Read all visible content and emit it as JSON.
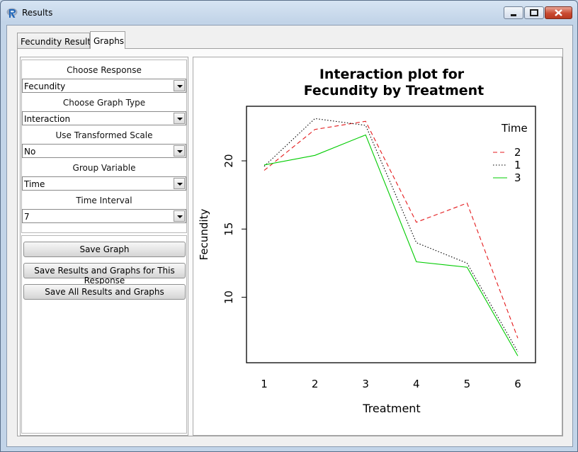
{
  "window": {
    "title": "Results",
    "icon": "r-logo-icon"
  },
  "tabs": [
    {
      "label": "Fecundity Results",
      "active": false
    },
    {
      "label": "Graphs",
      "active": true
    }
  ],
  "options": {
    "response": {
      "label": "Choose Response",
      "value": "Fecundity"
    },
    "graph_type": {
      "label": "Choose Graph Type",
      "value": "Interaction"
    },
    "transformed": {
      "label": "Use Transformed Scale",
      "value": "No"
    },
    "group": {
      "label": "Group Variable",
      "value": "Time"
    },
    "interval": {
      "label": "Time Interval",
      "value": "7"
    }
  },
  "buttons": {
    "save_graph": "Save Graph",
    "save_response": "Save Results and Graphs for This Response",
    "save_all": "Save All Results and Graphs"
  },
  "chart_data": {
    "type": "line",
    "title_line1": "Interaction plot for",
    "title_line2": "Fecundity by Treatment",
    "xlabel": "Treatment",
    "ylabel": "Fecundity",
    "x": [
      1,
      2,
      3,
      4,
      5,
      6
    ],
    "ylim": [
      5.2,
      24.0
    ],
    "yticks": [
      10,
      15,
      20
    ],
    "legend_title": "Time",
    "legend_position": "top-right",
    "series": [
      {
        "name": "2",
        "color": "#e41a1c",
        "dash": "dashed",
        "values": [
          19.3,
          22.3,
          22.9,
          15.5,
          16.9,
          7.0
        ]
      },
      {
        "name": "1",
        "color": "#000000",
        "dash": "dotted",
        "values": [
          19.6,
          23.1,
          22.6,
          14.0,
          12.5,
          6.0
        ]
      },
      {
        "name": "3",
        "color": "#00cc00",
        "dash": "solid",
        "values": [
          19.7,
          20.4,
          21.9,
          12.6,
          12.2,
          5.7
        ]
      }
    ]
  }
}
